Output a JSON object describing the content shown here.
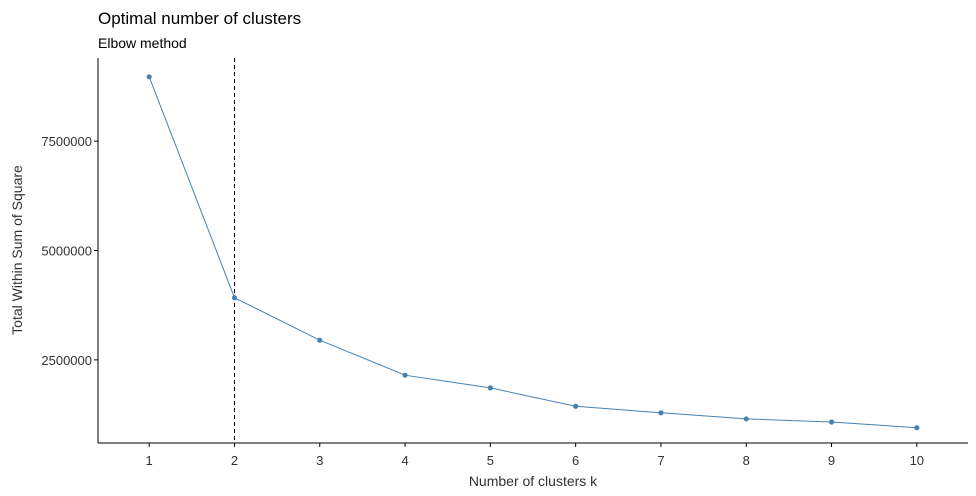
{
  "chart_data": {
    "type": "line",
    "title": "Optimal number of clusters",
    "subtitle": "Elbow method",
    "xlabel": "Number of clusters k",
    "ylabel": "Total Within Sum of Square",
    "x": [
      1,
      2,
      3,
      4,
      5,
      6,
      7,
      8,
      9,
      10
    ],
    "xticks": [
      "1",
      "2",
      "3",
      "4",
      "5",
      "6",
      "7",
      "8",
      "9",
      "10"
    ],
    "yticks": [
      2500000,
      5000000,
      7500000
    ],
    "ytick_labels": [
      "2500000",
      "5000000",
      "7500000"
    ],
    "series": [
      {
        "values": [
          8970000,
          3920000,
          2950000,
          2150000,
          1860000,
          1440000,
          1290000,
          1150000,
          1080000,
          950000
        ]
      }
    ],
    "vline_x": 2,
    "vline_style": "dashed",
    "xlim": [
      0.4,
      10.6
    ],
    "ylim": [
      600000,
      9400000
    ],
    "grid": false,
    "colors": {
      "series": "#4682B4",
      "vline": "#000000",
      "axis": "#000000",
      "text": "#333333"
    }
  }
}
